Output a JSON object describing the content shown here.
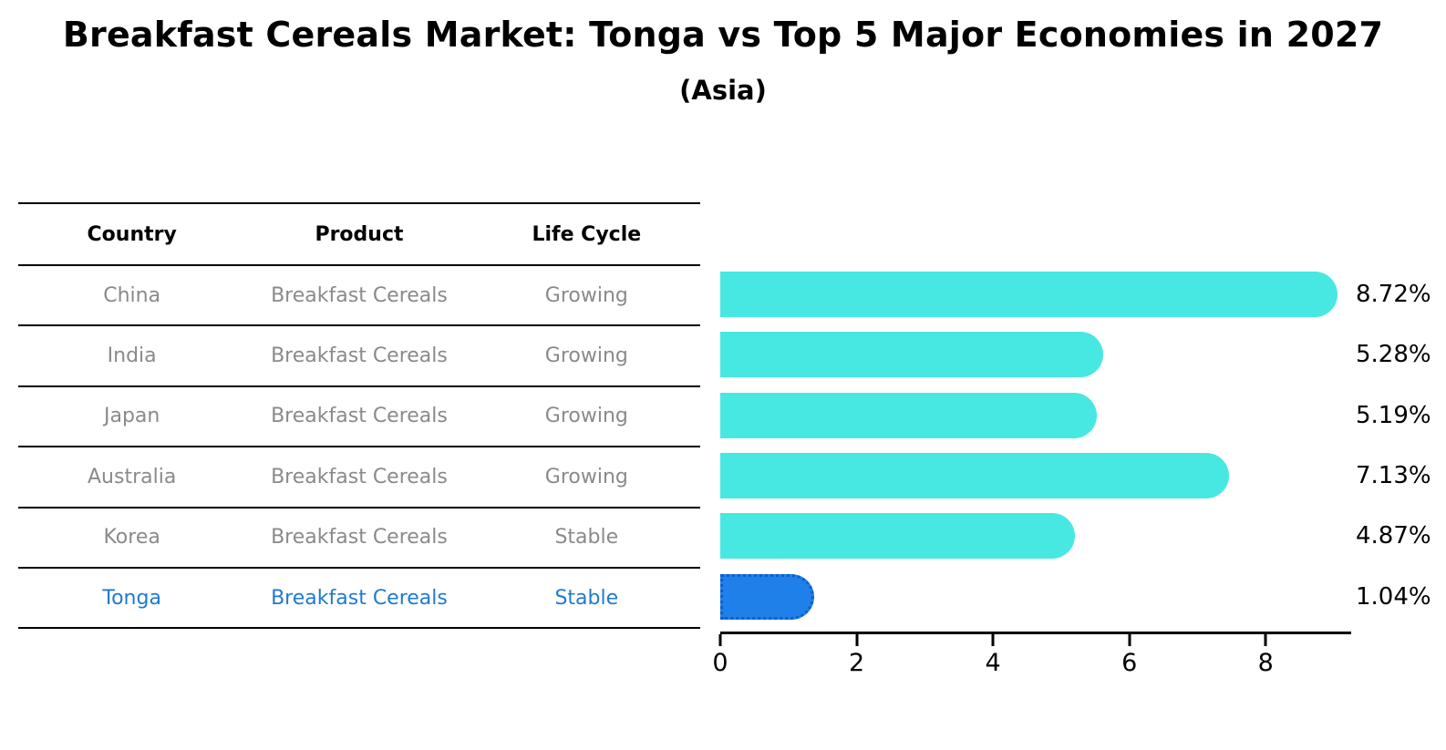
{
  "title": "Breakfast Cereals Market: Tonga vs Top 5 Major Economies in 2027",
  "subtitle": "(Asia)",
  "table": {
    "headers": [
      "Country",
      "Product",
      "Life Cycle"
    ],
    "rows": [
      {
        "country": "China",
        "product": "Breakfast Cereals",
        "life_cycle": "Growing",
        "highlight": false
      },
      {
        "country": "India",
        "product": "Breakfast Cereals",
        "life_cycle": "Growing",
        "highlight": false
      },
      {
        "country": "Japan",
        "product": "Breakfast Cereals",
        "life_cycle": "Growing",
        "highlight": false
      },
      {
        "country": "Australia",
        "product": "Breakfast Cereals",
        "life_cycle": "Growing",
        "highlight": false
      },
      {
        "country": "Korea",
        "product": "Breakfast Cereals",
        "life_cycle": "Stable",
        "highlight": false
      },
      {
        "country": "Tonga",
        "product": "Breakfast Cereals",
        "life_cycle": "Stable",
        "highlight": true
      }
    ]
  },
  "chart_data": {
    "type": "bar",
    "orientation": "horizontal",
    "title": "Breakfast Cereals Market: Tonga vs Top 5 Major Economies in 2027",
    "subtitle": "(Asia)",
    "categories": [
      "China",
      "India",
      "Japan",
      "Australia",
      "Korea",
      "Tonga"
    ],
    "values": [
      8.72,
      5.28,
      5.19,
      7.13,
      4.87,
      1.04
    ],
    "value_labels": [
      "8.72%",
      "5.28%",
      "5.19%",
      "7.13%",
      "4.87%",
      "1.04%"
    ],
    "xlabel": "",
    "ylabel": "",
    "xticks": [
      0,
      2,
      4,
      6,
      8
    ],
    "xlim": [
      0,
      9.2
    ],
    "grid": false,
    "legend": false,
    "bar_color": "#48e8e2",
    "highlight_index": 5,
    "highlight_color": "#1e80e8",
    "highlight_border_color": "#0d5ece",
    "highlight_text_color": "#1f7ad2"
  }
}
